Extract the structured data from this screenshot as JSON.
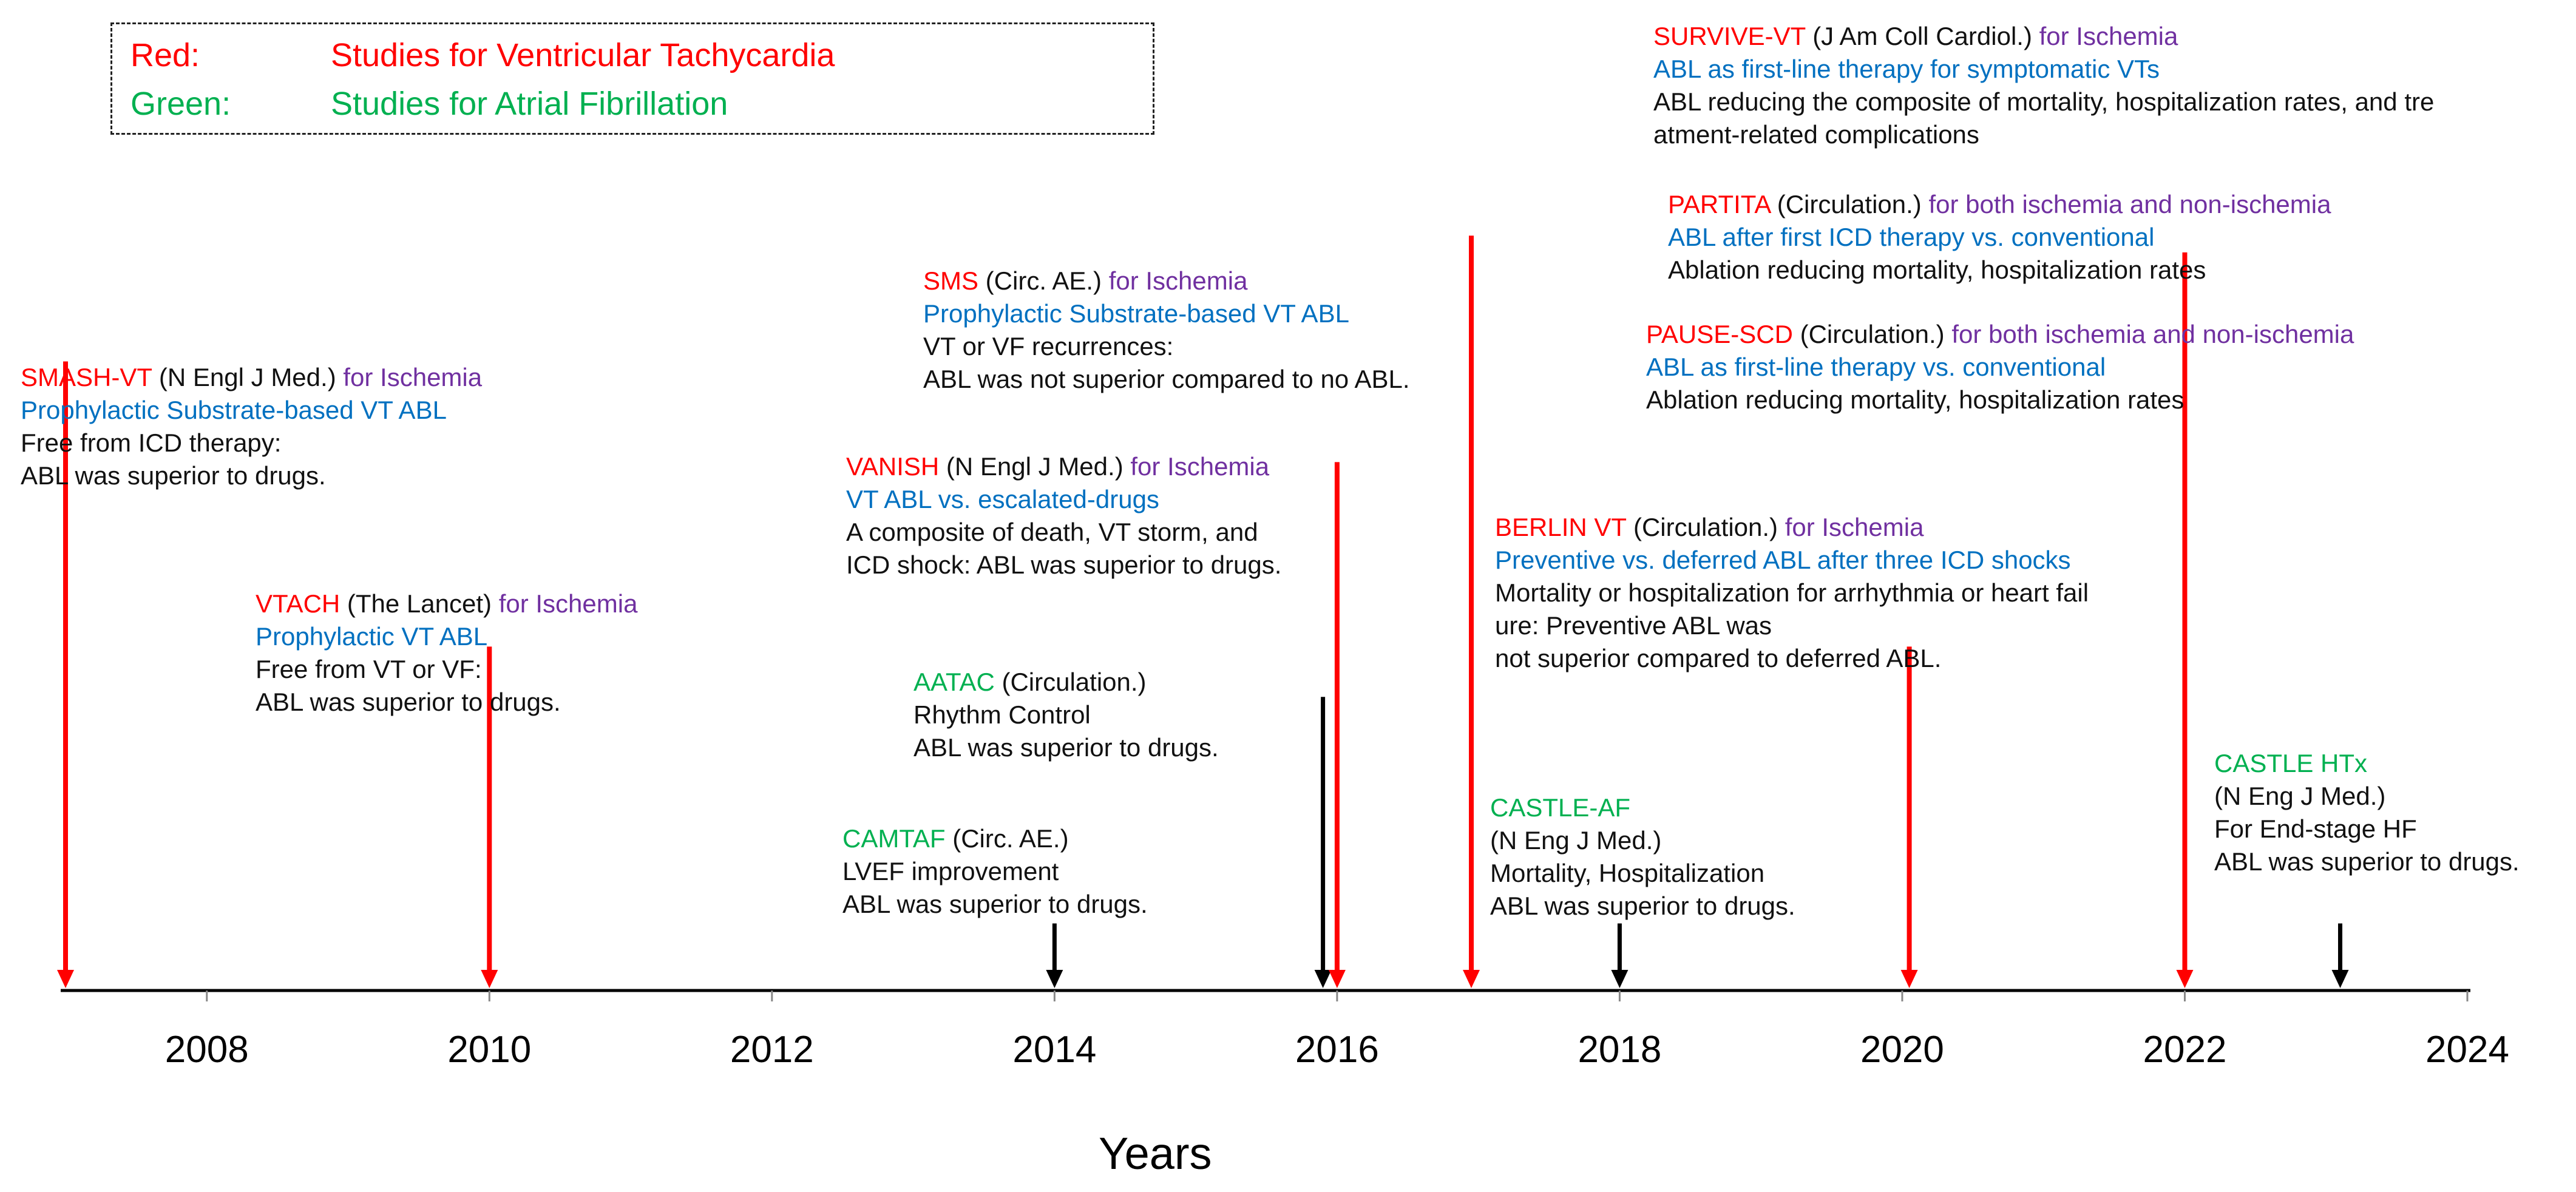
{
  "legend": {
    "red_key": "Red:",
    "red_desc": "Studies for Ventricular Tachycardia",
    "green_key": "Green:",
    "green_desc": "Studies for Atrial Fibrillation"
  },
  "colors": {
    "red": "#ff0000",
    "green": "#00b050",
    "purple": "#7030a0",
    "blue": "#0070c0",
    "black": "#000000"
  },
  "axis": {
    "label": "Years",
    "ticks": [
      "2008",
      "2010",
      "2012",
      "2014",
      "2016",
      "2018",
      "2020",
      "2022",
      "2024"
    ],
    "min_year": 2007,
    "max_year": 2024
  },
  "studies": {
    "smash_vt": {
      "name": "SMASH-VT",
      "journal": " (N Engl J Med.) ",
      "population": "for Ischemia",
      "design": "Prophylactic Substrate-based VT ABL",
      "result1": "Free from ICD therapy:",
      "result2": "ABL was superior to drugs."
    },
    "vtach": {
      "name": "VTACH",
      "journal": " (The Lancet) ",
      "population": "for Ischemia",
      "design": "Prophylactic VT ABL",
      "result1": "Free from VT or VF:",
      "result2": "ABL was superior to drugs."
    },
    "sms": {
      "name": "SMS",
      "journal": " (Circ. AE.) ",
      "population": "for Ischemia",
      "design": "Prophylactic Substrate-based VT ABL",
      "result1": "VT or VF recurrences:",
      "result2": "ABL was not superior compared to no ABL."
    },
    "vanish": {
      "name": "VANISH",
      "journal": " (N Engl J Med.) ",
      "population": "for Ischemia",
      "design": "VT ABL vs. escalated-drugs",
      "result1": "A composite of death, VT storm, and",
      "result2": "ICD shock: ABL was superior to drugs."
    },
    "aatac": {
      "name": "AATAC",
      "journal": " (Circulation.)",
      "result1": "Rhythm Control",
      "result2": "ABL was superior to drugs."
    },
    "camtaf": {
      "name": "CAMTAF",
      "journal": " (Circ. AE.)",
      "result1": "LVEF improvement",
      "result2": "ABL was superior to drugs."
    },
    "survive_vt": {
      "name": "SURVIVE-VT",
      "journal": " (J Am Coll Cardiol.) ",
      "population": "for Ischemia",
      "design": "ABL as first-line therapy for symptomatic VTs",
      "result1": "ABL reducing the composite of mortality, hospitalization rates, and tre",
      "result2": "atment-related complications"
    },
    "partita": {
      "name": "PARTITA",
      "journal": " (Circulation.) ",
      "population": "for both ischemia and non-ischemia",
      "design": "ABL after first ICD therapy vs. conventional",
      "result1": "Ablation reducing mortality, hospitalization rates"
    },
    "pause_scd": {
      "name": "PAUSE-SCD",
      "journal": " (Circulation.) ",
      "population": "for both ischemia and non-ischemia",
      "design": "ABL as first-line therapy vs. conventional",
      "result1": "Ablation reducing mortality, hospitalization rates"
    },
    "berlin_vt": {
      "name": "BERLIN VT",
      "journal": " (Circulation.) ",
      "population": "for Ischemia",
      "design": "Preventive vs. deferred ABL after three ICD shocks",
      "result1": "Mortality or hospitalization for arrhythmia or heart fail",
      "result2": "ure: Preventive ABL was",
      "result3": "not superior compared to deferred ABL."
    },
    "castle_af": {
      "name": "CASTLE-AF",
      "journal": "(N Eng J Med.)",
      "result1": "Mortality, Hospitalization",
      "result2": "ABL was superior to drugs."
    },
    "castle_htx": {
      "name": "CASTLE HTx",
      "journal": "(N Eng J Med.)",
      "result1": "For End-stage HF",
      "result2": "ABL was superior to drugs."
    }
  },
  "chart_data": {
    "type": "timeline",
    "title": "",
    "xlabel": "Years",
    "xlim": [
      2007,
      2024
    ],
    "markers": [
      {
        "study": "SMASH-VT",
        "year": 2007.0,
        "category": "VT",
        "color": "red",
        "height": 0.75
      },
      {
        "study": "VTACH",
        "year": 2010.0,
        "category": "VT",
        "color": "red",
        "height": 0.41
      },
      {
        "study": "AATAC",
        "year": 2015.9,
        "category": "AF",
        "color": "black",
        "height": 0.35
      },
      {
        "study": "VANISH",
        "year": 2016.0,
        "category": "VT",
        "color": "red",
        "height": 0.63
      },
      {
        "study": "SMS",
        "year": 2016.95,
        "category": "VT",
        "color": "red",
        "height": 0.9
      },
      {
        "study": "CAMTAF",
        "year": 2014.0,
        "category": "AF",
        "color": "black",
        "height": 0.08
      },
      {
        "study": "CASTLE-AF",
        "year": 2018.0,
        "category": "AF",
        "color": "black",
        "height": 0.08
      },
      {
        "study": "BERLIN VT",
        "year": 2020.05,
        "category": "VT",
        "color": "red",
        "height": 0.41
      },
      {
        "study": "PAUSE-SCD",
        "year": 2022.0,
        "category": "VT",
        "color": "red",
        "height": 0.88
      },
      {
        "study": "CASTLE HTx",
        "year": 2023.1,
        "category": "AF",
        "color": "black",
        "height": 0.08
      }
    ]
  }
}
